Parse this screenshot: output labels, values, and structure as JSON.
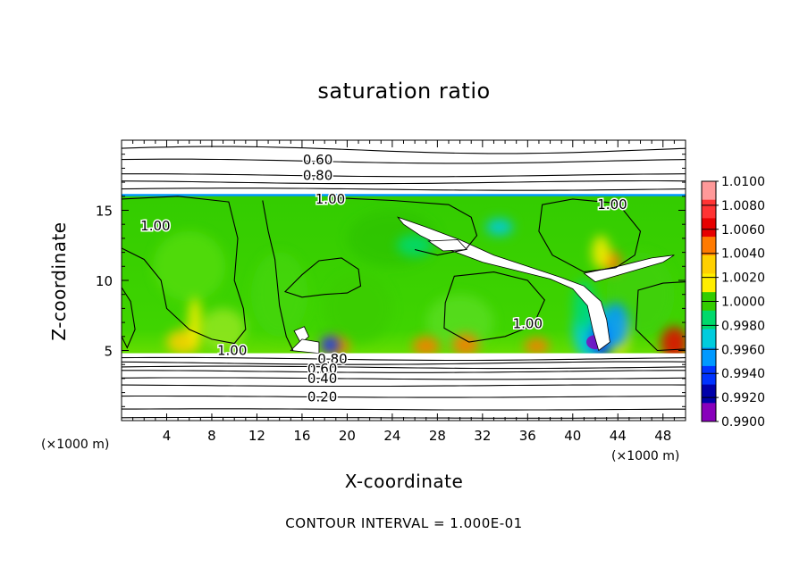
{
  "chart_data": {
    "type": "heatmap",
    "title": "saturation ratio",
    "xlabel": "X-coordinate",
    "ylabel": "Z-coordinate",
    "x_units": "(×1000 m)",
    "footer": "CONTOUR INTERVAL = 1.000E-01",
    "xlim": [
      0,
      50
    ],
    "ylim": [
      0,
      20
    ],
    "x_ticks": [
      4,
      8,
      12,
      16,
      20,
      24,
      28,
      32,
      36,
      40,
      44,
      48
    ],
    "y_ticks": [
      5,
      10,
      15
    ],
    "colorbar": {
      "min": 0.99,
      "max": 1.01,
      "levels": [
        "1.0100",
        "1.0080",
        "1.0060",
        "1.0040",
        "1.0020",
        "1.0000",
        "0.9980",
        "0.9960",
        "0.9940",
        "0.9920",
        "0.9900"
      ],
      "colors": [
        "#ff9999",
        "#ff3333",
        "#e60000",
        "#ff7a00",
        "#ffd000",
        "#ffee00",
        "#33cc00",
        "#00d96b",
        "#00ccdd",
        "#0099ff",
        "#0033ff",
        "#0000aa",
        "#8800bb"
      ]
    },
    "field": {
      "background_value": 0.999,
      "moist_layer_bottom_z": 4.8,
      "moist_layer_top_z": 16.1
    },
    "contour_labels": [
      {
        "text": "0.60",
        "x": 17.4,
        "z": 18.6
      },
      {
        "text": "0.80",
        "x": 17.4,
        "z": 17.5
      },
      {
        "text": "1.00",
        "x": 18.5,
        "z": 15.8
      },
      {
        "text": "1.00",
        "x": 43.5,
        "z": 15.4
      },
      {
        "text": "1.00",
        "x": 3.0,
        "z": 13.9
      },
      {
        "text": "1.00",
        "x": 36.0,
        "z": 6.9
      },
      {
        "text": "1.00",
        "x": 9.8,
        "z": 5.0
      },
      {
        "text": "0.80",
        "x": 18.7,
        "z": 4.4
      },
      {
        "text": "0.60",
        "x": 17.8,
        "z": 3.7
      },
      {
        "text": "0.40",
        "x": 17.8,
        "z": 3.0
      },
      {
        "text": "0.20",
        "x": 17.8,
        "z": 1.7
      }
    ]
  }
}
